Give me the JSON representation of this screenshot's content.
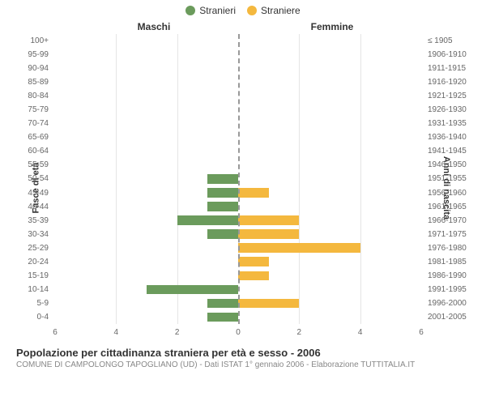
{
  "legend": {
    "m": {
      "label": "Stranieri",
      "color": "#6b9b5c"
    },
    "f": {
      "label": "Straniere",
      "color": "#f4b83e"
    }
  },
  "columns": {
    "left": "Maschi",
    "right": "Femmine"
  },
  "axis_labels": {
    "left": "Fasce di età",
    "right": "Anni di nascita"
  },
  "chart": {
    "type": "population-pyramid",
    "max": 6,
    "ticks": [
      6,
      4,
      2,
      0,
      2,
      4,
      6
    ],
    "background_color": "#ffffff",
    "grid_color": "#e5e5e5",
    "centerline_color": "#999999",
    "bar_color_m": "#6b9b5c",
    "bar_color_f": "#f4b83e",
    "rows": [
      {
        "age": "100+",
        "birth": "≤ 1905",
        "m": 0,
        "f": 0
      },
      {
        "age": "95-99",
        "birth": "1906-1910",
        "m": 0,
        "f": 0
      },
      {
        "age": "90-94",
        "birth": "1911-1915",
        "m": 0,
        "f": 0
      },
      {
        "age": "85-89",
        "birth": "1916-1920",
        "m": 0,
        "f": 0
      },
      {
        "age": "80-84",
        "birth": "1921-1925",
        "m": 0,
        "f": 0
      },
      {
        "age": "75-79",
        "birth": "1926-1930",
        "m": 0,
        "f": 0
      },
      {
        "age": "70-74",
        "birth": "1931-1935",
        "m": 0,
        "f": 0
      },
      {
        "age": "65-69",
        "birth": "1936-1940",
        "m": 0,
        "f": 0
      },
      {
        "age": "60-64",
        "birth": "1941-1945",
        "m": 0,
        "f": 0
      },
      {
        "age": "55-59",
        "birth": "1946-1950",
        "m": 0,
        "f": 0
      },
      {
        "age": "50-54",
        "birth": "1951-1955",
        "m": 1,
        "f": 0
      },
      {
        "age": "45-49",
        "birth": "1956-1960",
        "m": 1,
        "f": 1
      },
      {
        "age": "40-44",
        "birth": "1961-1965",
        "m": 1,
        "f": 0
      },
      {
        "age": "35-39",
        "birth": "1966-1970",
        "m": 2,
        "f": 2
      },
      {
        "age": "30-34",
        "birth": "1971-1975",
        "m": 1,
        "f": 2
      },
      {
        "age": "25-29",
        "birth": "1976-1980",
        "m": 0,
        "f": 4
      },
      {
        "age": "20-24",
        "birth": "1981-1985",
        "m": 0,
        "f": 1
      },
      {
        "age": "15-19",
        "birth": "1986-1990",
        "m": 0,
        "f": 1
      },
      {
        "age": "10-14",
        "birth": "1991-1995",
        "m": 3,
        "f": 0
      },
      {
        "age": "5-9",
        "birth": "1996-2000",
        "m": 1,
        "f": 2
      },
      {
        "age": "0-4",
        "birth": "2001-2005",
        "m": 1,
        "f": 0
      }
    ]
  },
  "caption": {
    "title": "Popolazione per cittadinanza straniera per età e sesso - 2006",
    "subtitle": "COMUNE DI CAMPOLONGO TAPOGLIANO (UD) - Dati ISTAT 1° gennaio 2006 - Elaborazione TUTTITALIA.IT"
  }
}
